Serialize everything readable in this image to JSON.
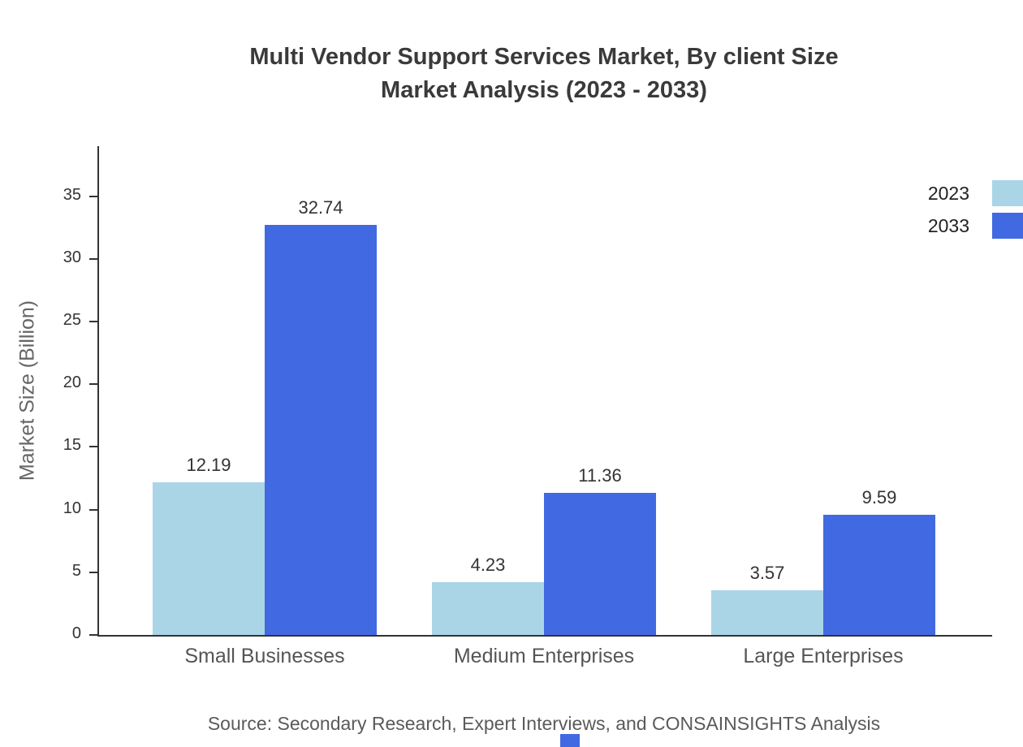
{
  "title": {
    "line1": "Multi Vendor Support Services Market, By client Size",
    "line2": "Market Analysis (2023 - 2033)"
  },
  "source": "Source: Secondary Research, Expert Interviews, and CONSAINSIGHTS Analysis",
  "chart_data": {
    "type": "bar",
    "title": "Multi Vendor Support Services Market, By client Size Market Analysis (2023 - 2033)",
    "categories": [
      "Small Businesses",
      "Medium Enterprises",
      "Large Enterprises"
    ],
    "series": [
      {
        "name": "2023",
        "color": "#a9d5e7",
        "values": [
          12.19,
          4.23,
          3.57
        ]
      },
      {
        "name": "2033",
        "color": "#4169e1",
        "values": [
          32.74,
          11.36,
          9.59
        ]
      }
    ],
    "xlabel": "",
    "ylabel": "Market Size (Billion)",
    "ylim": [
      0,
      39
    ],
    "yticks": [
      0,
      5,
      10,
      15,
      20,
      25,
      30,
      35
    ],
    "grid": false,
    "legend_position": "top-right",
    "value_labels": true
  },
  "colors": {
    "axis": "#333333",
    "title_text": "#3a3a3a",
    "category_text": "#555555",
    "source_text": "#5a5a5a",
    "watermark": "#4169e1"
  }
}
